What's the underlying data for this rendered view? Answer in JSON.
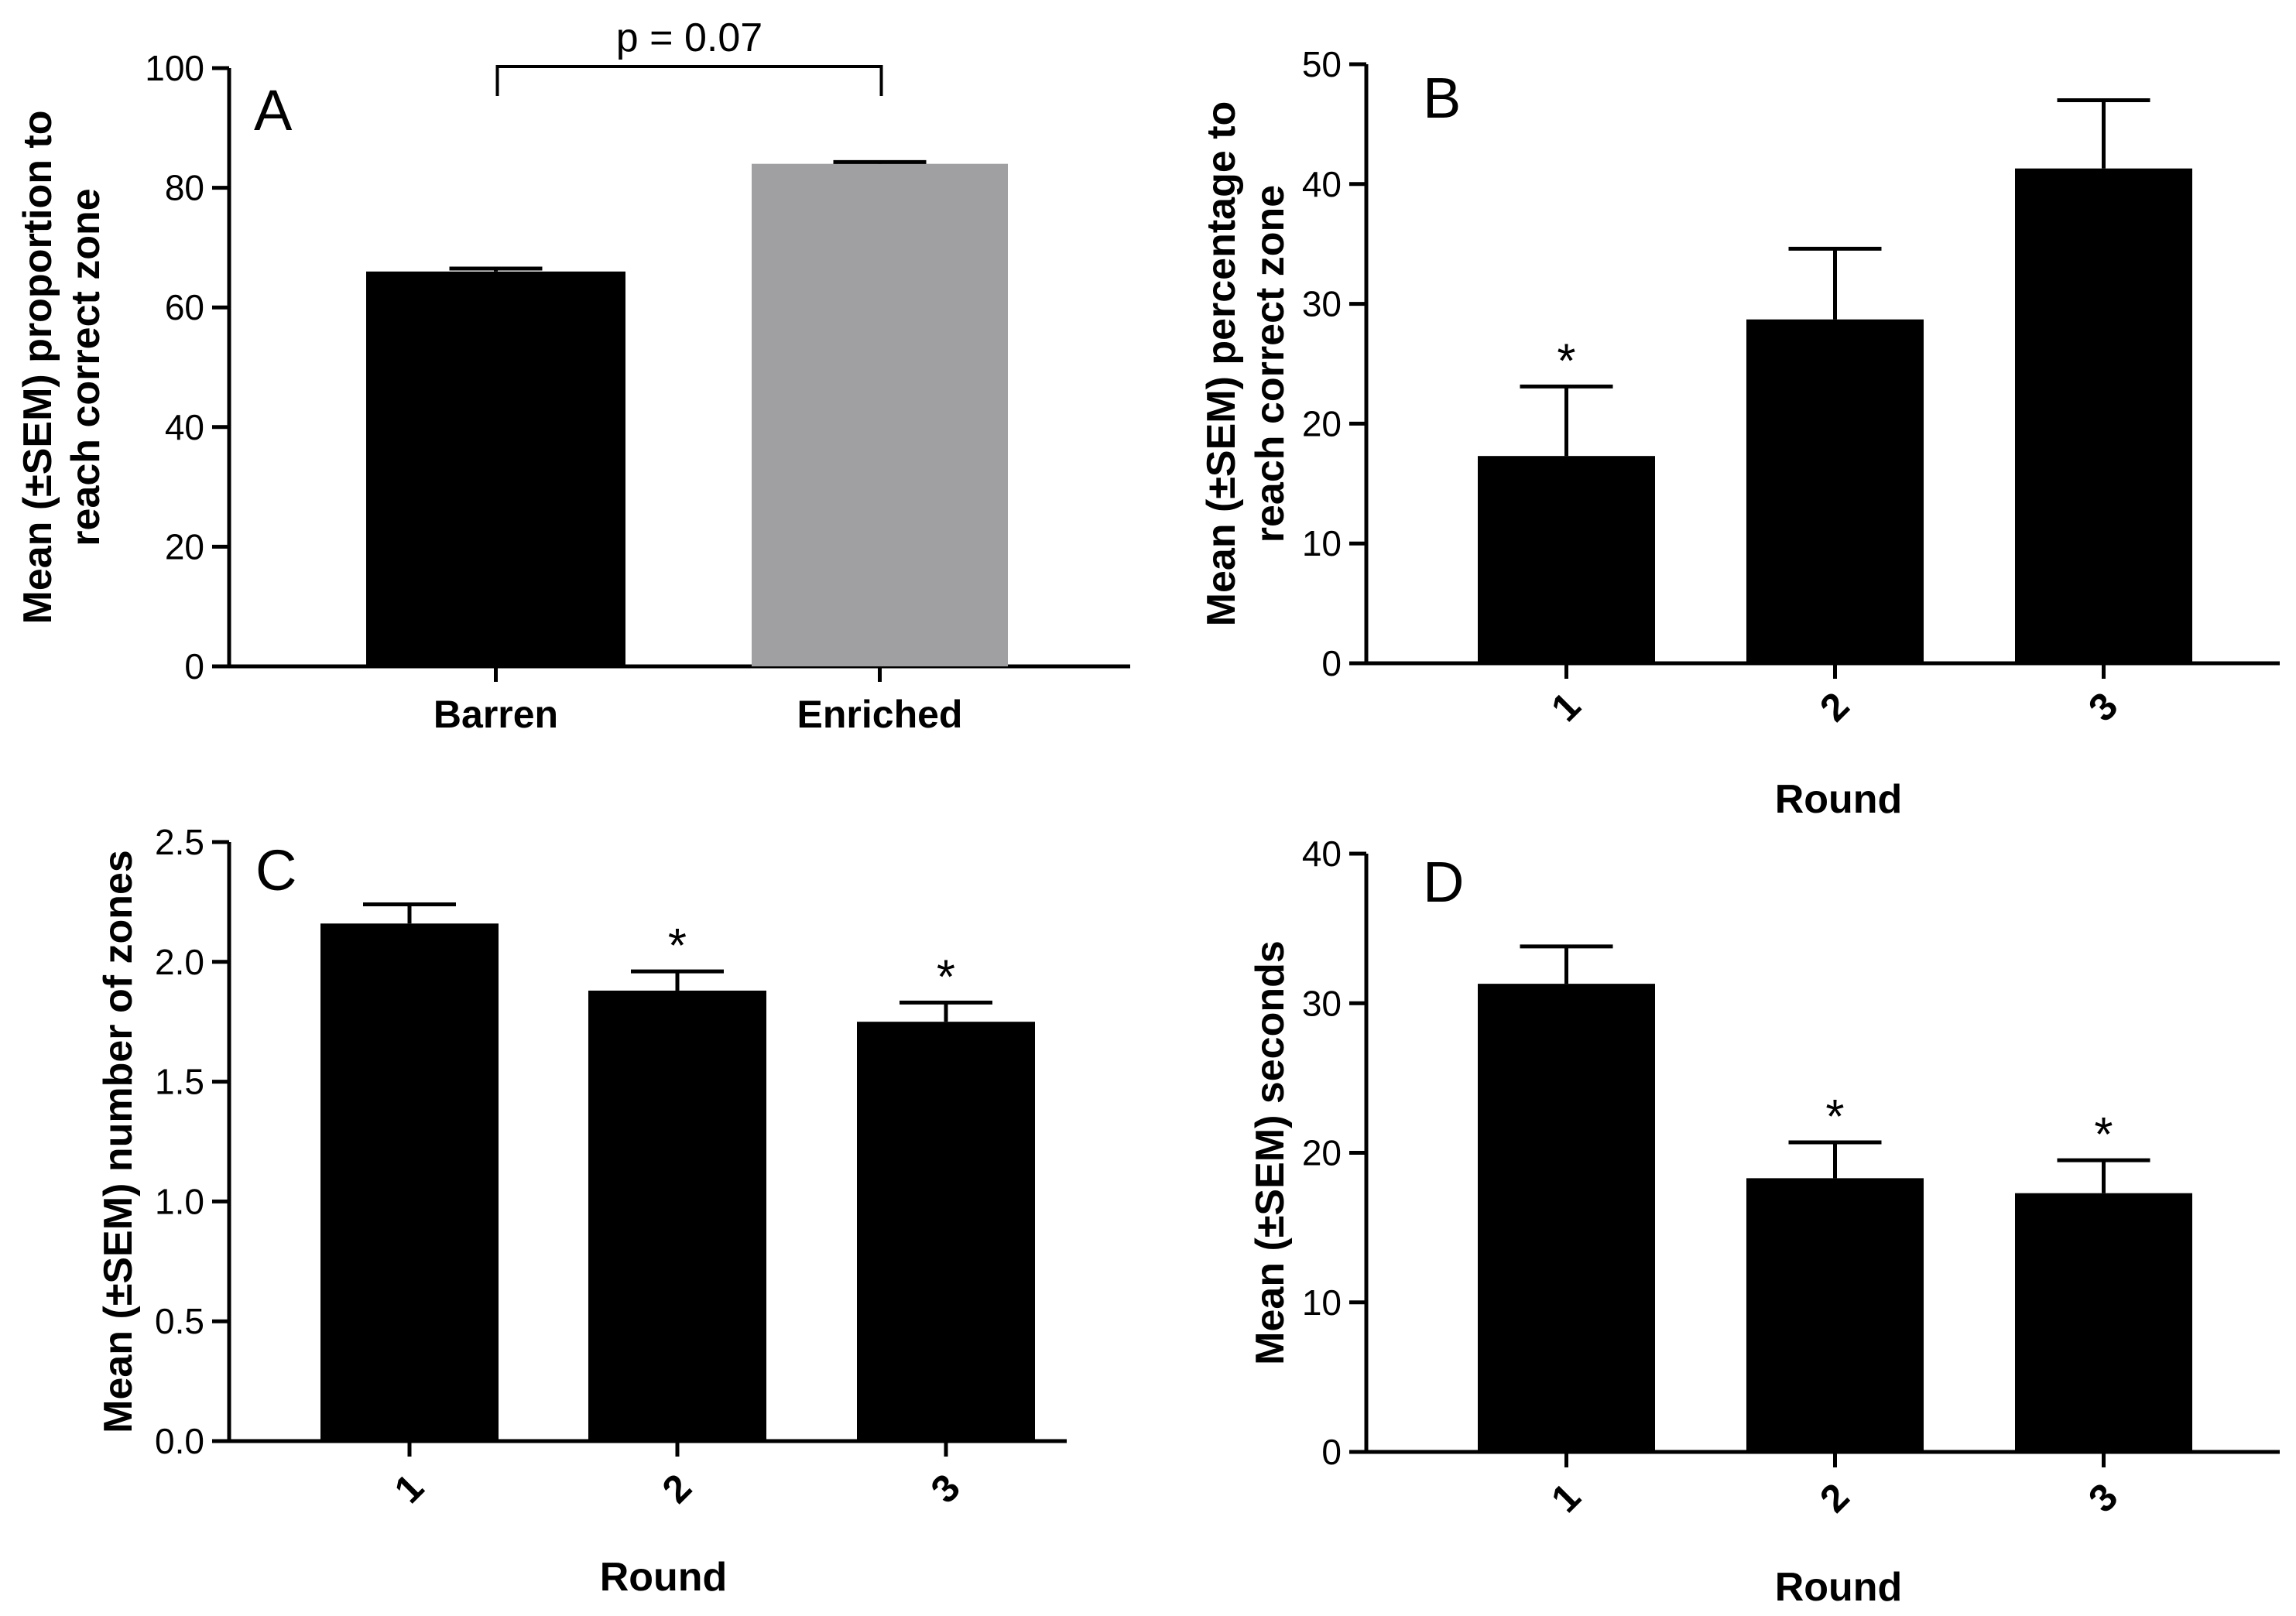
{
  "chart_data": [
    {
      "panel": "A",
      "type": "bar",
      "categories": [
        "Barren",
        "Enriched"
      ],
      "values": [
        66,
        84
      ],
      "errors": [
        0.5,
        0.3
      ],
      "bar_colors": [
        "#000000",
        "#a0a0a2"
      ],
      "ylabel_lines": [
        "Mean (±SEM) proportion to",
        "reach correct zone"
      ],
      "xlabel": "",
      "ylim": [
        0,
        100
      ],
      "yticks": [
        0,
        20,
        40,
        60,
        80,
        100
      ],
      "ytick_labels": [
        "0",
        "20",
        "40",
        "60",
        "80",
        "100"
      ],
      "significance": [
        "",
        ""
      ],
      "bracket_label": "p = 0.07",
      "rotate_x_labels": false
    },
    {
      "panel": "B",
      "type": "bar",
      "categories": [
        "1",
        "2",
        "3"
      ],
      "values": [
        17.3,
        28.7,
        41.3
      ],
      "errors": [
        5.8,
        5.9,
        5.7
      ],
      "bar_colors": [
        "#000000",
        "#000000",
        "#000000"
      ],
      "ylabel_lines": [
        "Mean (±SEM) percentage to",
        "reach correct zone"
      ],
      "xlabel": "Round",
      "ylim": [
        0,
        50
      ],
      "yticks": [
        0,
        10,
        20,
        30,
        40,
        50
      ],
      "ytick_labels": [
        "0",
        "10",
        "20",
        "30",
        "40",
        "50"
      ],
      "significance": [
        "*",
        "",
        ""
      ],
      "rotate_x_labels": true
    },
    {
      "panel": "C",
      "type": "bar",
      "categories": [
        "1",
        "2",
        "3"
      ],
      "values": [
        2.16,
        1.88,
        1.75
      ],
      "errors": [
        0.08,
        0.08,
        0.08
      ],
      "bar_colors": [
        "#000000",
        "#000000",
        "#000000"
      ],
      "ylabel_lines": [
        "Mean (±SEM) number of zones"
      ],
      "xlabel": "Round",
      "ylim": [
        0,
        2.5
      ],
      "yticks": [
        0,
        0.5,
        1,
        1.5,
        2,
        2.5
      ],
      "ytick_labels": [
        "0.0",
        "0.5",
        "1.0",
        "1.5",
        "2.0",
        "2.5"
      ],
      "significance": [
        "",
        "*",
        "*"
      ],
      "rotate_x_labels": true
    },
    {
      "panel": "D",
      "type": "bar",
      "categories": [
        "1",
        "2",
        "3"
      ],
      "values": [
        31.3,
        18.3,
        17.3
      ],
      "errors": [
        2.5,
        2.4,
        2.2
      ],
      "bar_colors": [
        "#000000",
        "#000000",
        "#000000"
      ],
      "ylabel_lines": [
        "Mean (±SEM) seconds"
      ],
      "xlabel": "Round",
      "ylim": [
        0,
        40
      ],
      "yticks": [
        0,
        10,
        20,
        30,
        40
      ],
      "ytick_labels": [
        "0",
        "10",
        "20",
        "30",
        "40"
      ],
      "significance": [
        "",
        "*",
        "*"
      ],
      "rotate_x_labels": true
    }
  ]
}
